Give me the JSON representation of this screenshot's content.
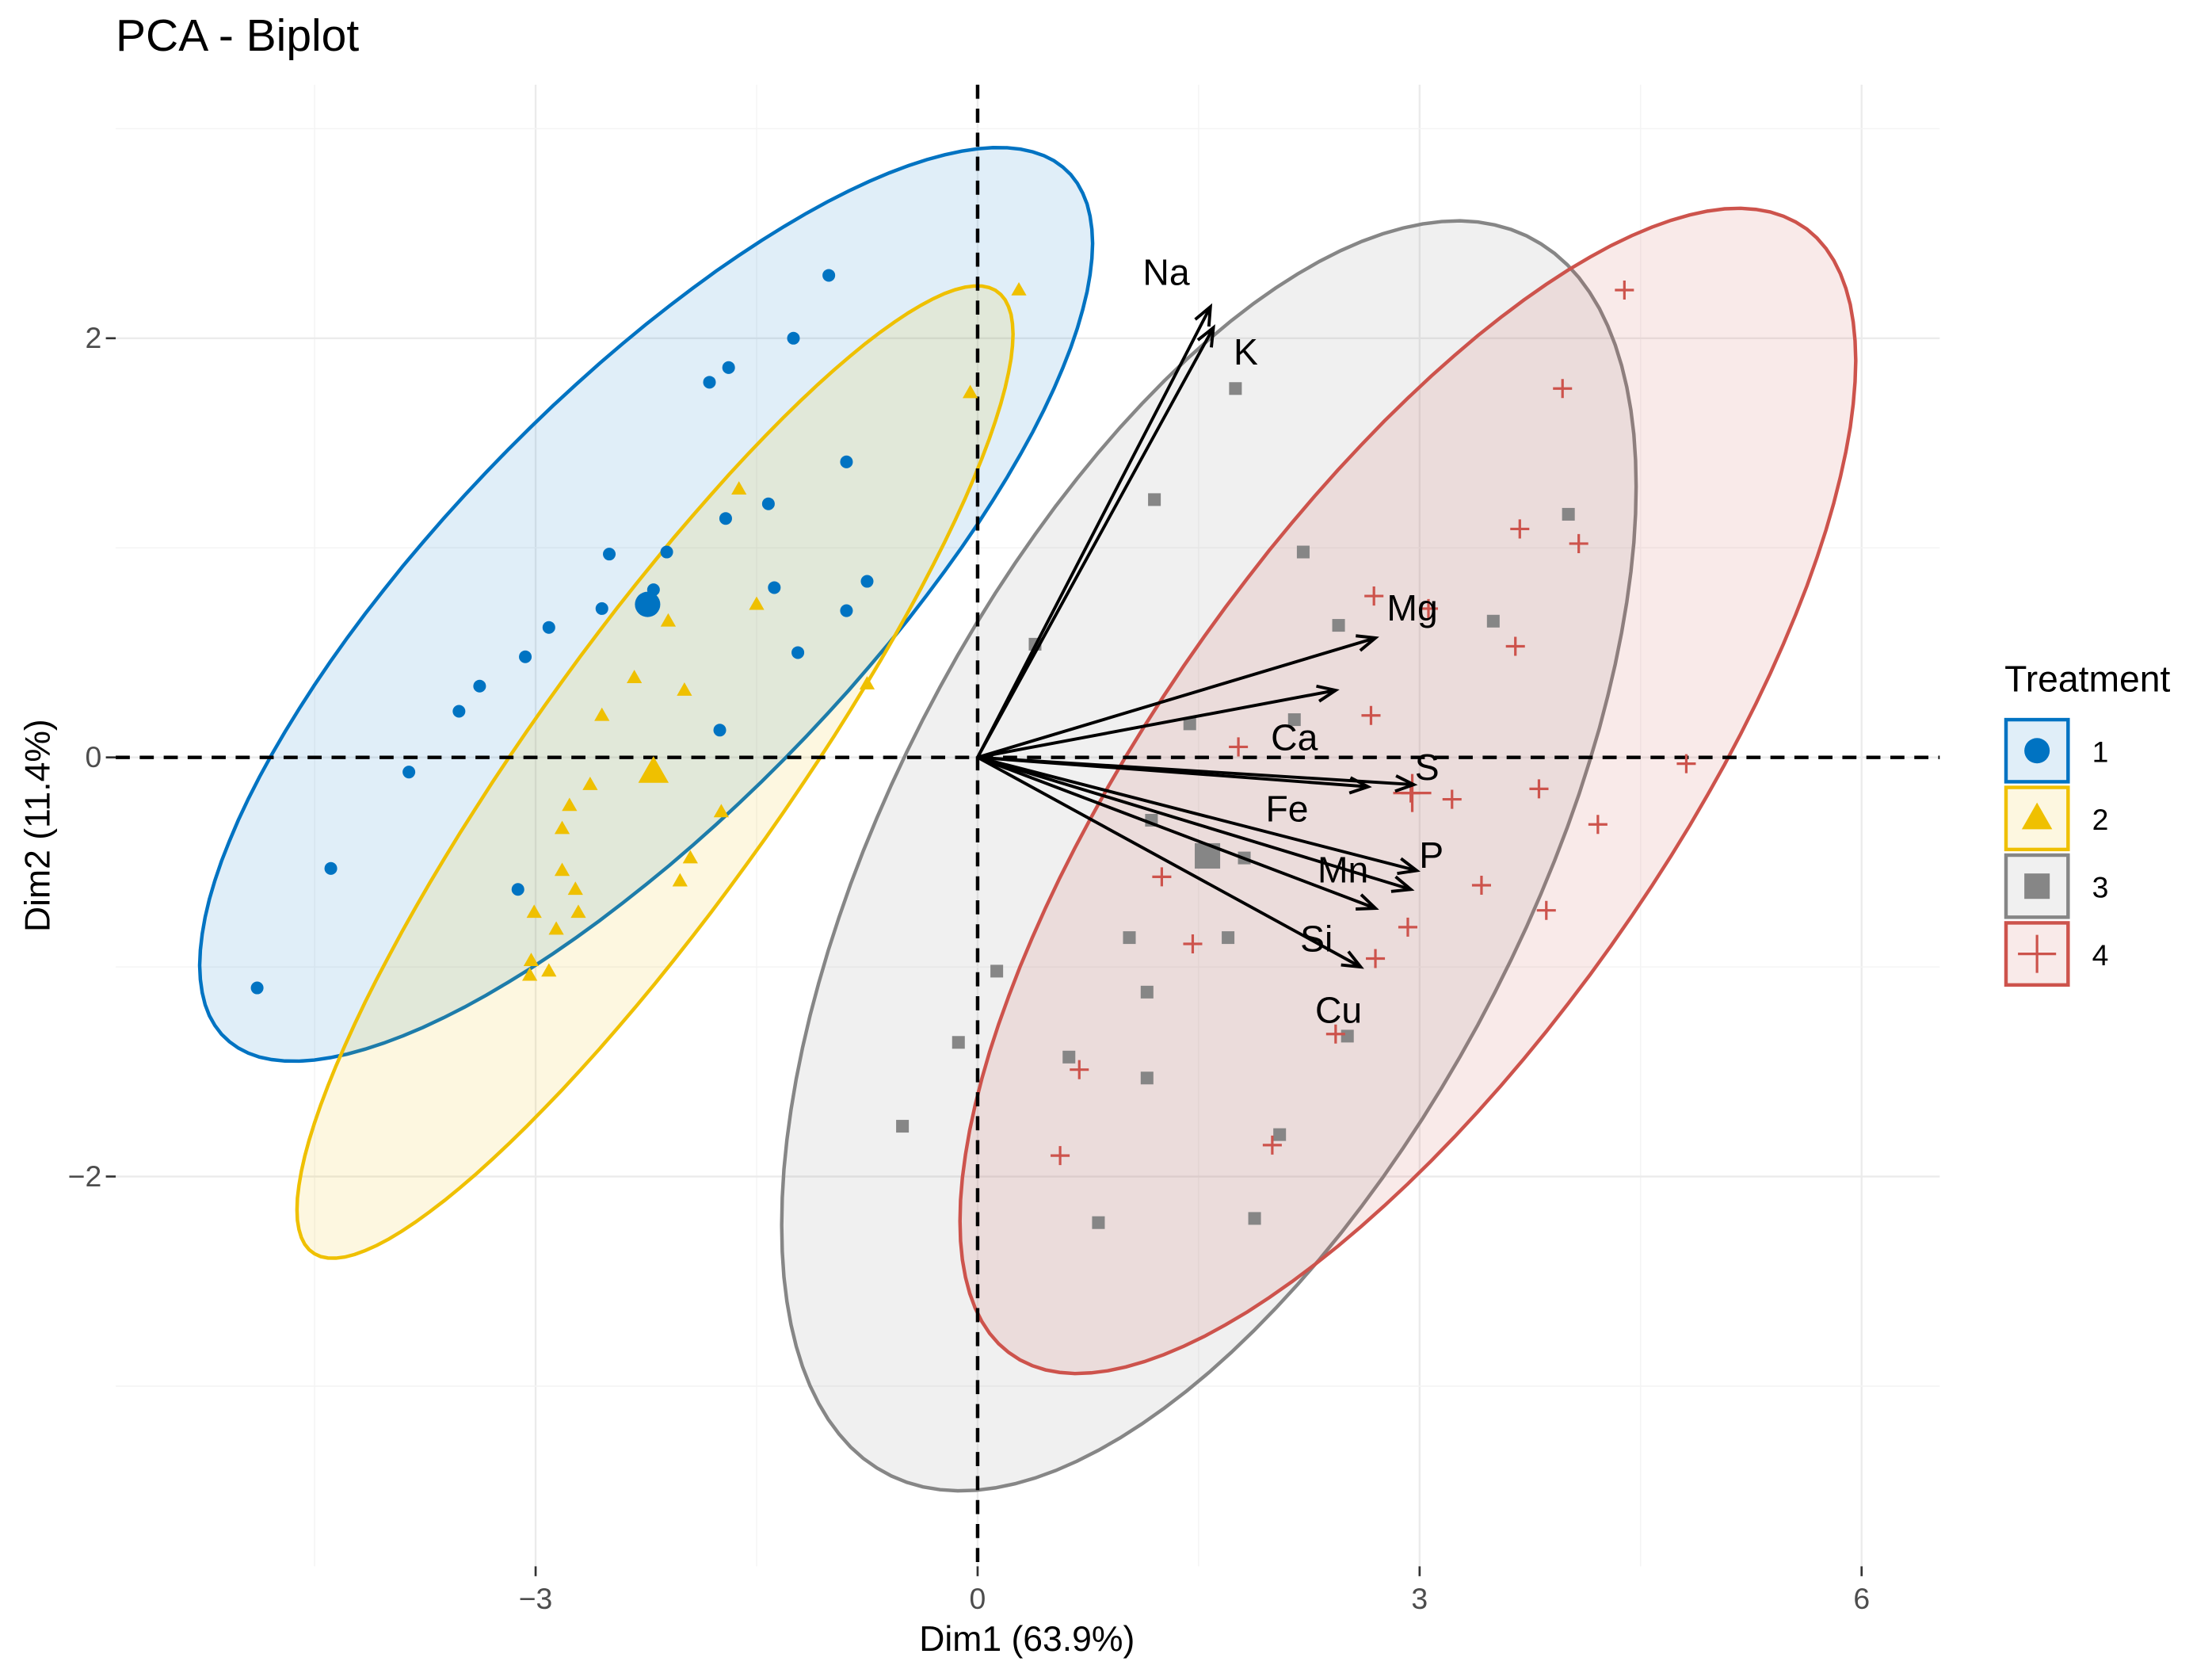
{
  "chart_data": {
    "type": "scatter",
    "title": "PCA - Biplot",
    "xlabel": "Dim1 (63.9%)",
    "ylabel": "Dim2 (11.4%)",
    "xlim": [
      -5.85,
      6.53
    ],
    "ylim": [
      -3.86,
      3.21
    ],
    "x_ticks": [
      -3,
      0,
      3,
      6
    ],
    "x_tick_labels": [
      "−3",
      "0",
      "3",
      "6"
    ],
    "y_ticks": [
      -2,
      0,
      2
    ],
    "y_tick_labels": [
      "−2",
      "0",
      "2"
    ],
    "grid": true,
    "legend": {
      "title": "Treatment",
      "position": "right"
    },
    "groups": [
      {
        "name": "1",
        "color": "#0073C2",
        "shape": "circle",
        "mean": [
          -2.24,
          0.73
        ],
        "ellipse": {
          "cx": -2.25,
          "cy": 0.73,
          "ax": 3.03,
          "ay": 2.18,
          "phase": 0.66
        },
        "points": [
          [
            -1.01,
            2.3
          ],
          [
            -1.25,
            2.0
          ],
          [
            -1.69,
            1.86
          ],
          [
            -1.82,
            1.79
          ],
          [
            -0.89,
            1.41
          ],
          [
            -1.42,
            1.21
          ],
          [
            -1.71,
            1.14
          ],
          [
            -2.11,
            0.98
          ],
          [
            -2.5,
            0.97
          ],
          [
            -1.38,
            0.81
          ],
          [
            -0.75,
            0.84
          ],
          [
            -2.2,
            0.8
          ],
          [
            -2.55,
            0.71
          ],
          [
            -2.91,
            0.62
          ],
          [
            -3.07,
            0.48
          ],
          [
            -3.38,
            0.34
          ],
          [
            -3.52,
            0.22
          ],
          [
            -0.89,
            0.7
          ],
          [
            -1.22,
            0.5
          ],
          [
            -1.75,
            0.13
          ],
          [
            -3.86,
            -0.07
          ],
          [
            -4.39,
            -0.53
          ],
          [
            -3.12,
            -0.63
          ],
          [
            -4.89,
            -1.1
          ]
        ]
      },
      {
        "name": "2",
        "color": "#EFC000",
        "shape": "triangle",
        "mean": [
          -2.2,
          -0.07
        ],
        "ellipse": {
          "cx": -2.19,
          "cy": -0.07,
          "ax": 2.43,
          "ay": 2.32,
          "phase": 0.45
        },
        "points": [
          [
            0.28,
            2.23
          ],
          [
            -0.05,
            1.74
          ],
          [
            -1.62,
            1.28
          ],
          [
            -2.1,
            0.65
          ],
          [
            -1.5,
            0.73
          ],
          [
            -2.33,
            0.38
          ],
          [
            -1.99,
            0.32
          ],
          [
            -2.55,
            0.2
          ],
          [
            -0.75,
            0.35
          ],
          [
            -2.63,
            -0.13
          ],
          [
            -2.77,
            -0.23
          ],
          [
            -2.82,
            -0.34
          ],
          [
            -1.74,
            -0.26
          ],
          [
            -1.95,
            -0.48
          ],
          [
            -2.82,
            -0.54
          ],
          [
            -2.73,
            -0.63
          ],
          [
            -2.02,
            -0.59
          ],
          [
            -3.01,
            -0.74
          ],
          [
            -2.71,
            -0.74
          ],
          [
            -2.86,
            -0.82
          ],
          [
            -3.03,
            -0.97
          ],
          [
            -2.91,
            -1.02
          ],
          [
            -3.04,
            -1.04
          ]
        ]
      },
      {
        "name": "3",
        "color": "#868686",
        "shape": "square",
        "mean": [
          1.56,
          -0.47
        ],
        "ellipse": {
          "cx": 1.57,
          "cy": -0.47,
          "ax": 2.9,
          "ay": 3.03,
          "phase": 0.95
        },
        "points": [
          [
            1.75,
            1.76
          ],
          [
            1.2,
            1.23
          ],
          [
            2.21,
            0.98
          ],
          [
            4.01,
            1.16
          ],
          [
            2.45,
            0.63
          ],
          [
            3.5,
            0.65
          ],
          [
            0.39,
            0.54
          ],
          [
            1.44,
            0.16
          ],
          [
            2.15,
            0.18
          ],
          [
            1.18,
            -0.3
          ],
          [
            1.81,
            -0.48
          ],
          [
            1.03,
            -0.86
          ],
          [
            1.7,
            -0.86
          ],
          [
            0.13,
            -1.02
          ],
          [
            1.15,
            -1.12
          ],
          [
            -0.13,
            -1.36
          ],
          [
            0.62,
            -1.43
          ],
          [
            2.51,
            -1.33
          ],
          [
            1.15,
            -1.53
          ],
          [
            2.05,
            -1.8
          ],
          [
            -0.51,
            -1.76
          ],
          [
            0.82,
            -2.22
          ],
          [
            1.88,
            -2.2
          ]
        ]
      },
      {
        "name": "4",
        "color": "#CD534C",
        "shape": "plus",
        "mean": [
          2.95,
          -0.17
        ],
        "ellipse": {
          "cx": 2.92,
          "cy": -0.16,
          "ax": 3.04,
          "ay": 2.78,
          "phase": 0.74
        },
        "points": [
          [
            4.39,
            2.23
          ],
          [
            3.97,
            1.76
          ],
          [
            3.68,
            1.09
          ],
          [
            4.08,
            1.02
          ],
          [
            2.69,
            0.77
          ],
          [
            3.06,
            0.71
          ],
          [
            3.65,
            0.53
          ],
          [
            2.67,
            0.2
          ],
          [
            1.77,
            0.05
          ],
          [
            4.81,
            -0.03
          ],
          [
            2.94,
            -0.17
          ],
          [
            3.22,
            -0.2
          ],
          [
            3.81,
            -0.15
          ],
          [
            4.21,
            -0.32
          ],
          [
            1.25,
            -0.57
          ],
          [
            3.42,
            -0.61
          ],
          [
            3.86,
            -0.73
          ],
          [
            2.92,
            -0.81
          ],
          [
            1.46,
            -0.89
          ],
          [
            2.7,
            -0.96
          ],
          [
            2.43,
            -1.32
          ],
          [
            0.69,
            -1.49
          ],
          [
            2.0,
            -1.85
          ],
          [
            0.56,
            -1.9
          ]
        ]
      }
    ],
    "variables": [
      {
        "name": "Na",
        "x": 1.58,
        "y": 2.15,
        "label_at": [
          1.28,
          2.3
        ]
      },
      {
        "name": "K",
        "x": 1.6,
        "y": 2.05,
        "label_at": [
          1.82,
          1.92
        ]
      },
      {
        "name": "Mg",
        "x": 2.7,
        "y": 0.57,
        "label_at": [
          2.95,
          0.7
        ]
      },
      {
        "name": "Ca",
        "x": 2.43,
        "y": 0.32,
        "label_at": [
          2.15,
          0.08
        ]
      },
      {
        "name": "S",
        "x": 2.96,
        "y": -0.13,
        "label_at": [
          3.05,
          -0.06
        ]
      },
      {
        "name": "Fe",
        "x": 2.65,
        "y": -0.14,
        "label_at": [
          2.1,
          -0.26
        ]
      },
      {
        "name": "Mn",
        "x": 2.98,
        "y": -0.54,
        "label_at": [
          2.48,
          -0.55
        ]
      },
      {
        "name": "P",
        "x": 2.94,
        "y": -0.63,
        "label_at": [
          3.08,
          -0.48
        ]
      },
      {
        "name": "Si",
        "x": 2.7,
        "y": -0.72,
        "label_at": [
          2.3,
          -0.88
        ]
      },
      {
        "name": "Cu",
        "x": 2.6,
        "y": -1.0,
        "label_at": [
          2.45,
          -1.22
        ]
      }
    ]
  }
}
